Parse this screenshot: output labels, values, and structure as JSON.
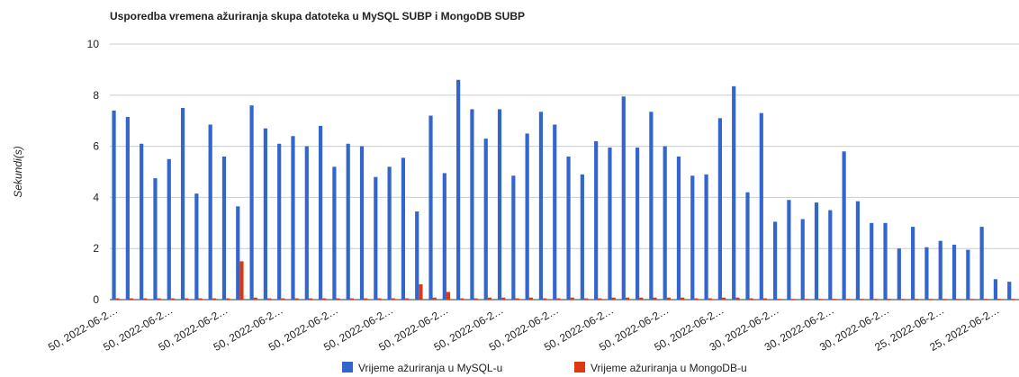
{
  "chart_data": {
    "type": "bar",
    "title": "Usporedba vremena ažuriranja skupa datoteka u MySQL SUBP i MongoDB SUBP",
    "y_label": "Sekundi(s)",
    "categories": [
      "50, 2022-06-2…",
      null,
      null,
      null,
      "50, 2022-06-2…",
      null,
      null,
      null,
      "50, 2022-06-2…",
      null,
      null,
      null,
      "50, 2022-06-2…",
      null,
      null,
      null,
      "50, 2022-06-2…",
      null,
      null,
      null,
      "50, 2022-06-2…",
      null,
      null,
      null,
      "50, 2022-06-2…",
      null,
      null,
      null,
      "50, 2022-06-2…",
      null,
      null,
      null,
      "50, 2022-06-2…",
      null,
      null,
      null,
      "50, 2022-06-2…",
      null,
      null,
      null,
      "50, 2022-06-2…",
      null,
      null,
      null,
      "50, 2022-06-2…",
      null,
      null,
      null,
      "30, 2022-06-2…",
      null,
      null,
      null,
      "30, 2022-06-2…",
      null,
      null,
      null,
      "30, 2022-06-2…",
      null,
      null,
      null,
      "25, 2022-06-2…",
      null,
      null,
      null,
      "25, 2022-06-2…",
      null
    ],
    "series": [
      {
        "name": "Vrijeme ažuriranja u MySQL-u",
        "color": "#3366cc",
        "values": [
          7.4,
          7.15,
          6.1,
          4.75,
          5.5,
          7.5,
          4.15,
          6.85,
          5.6,
          3.65,
          7.6,
          6.7,
          6.1,
          6.4,
          6.0,
          6.8,
          5.2,
          6.1,
          6.0,
          4.8,
          5.2,
          5.55,
          3.45,
          7.2,
          4.95,
          8.6,
          7.45,
          6.3,
          7.45,
          4.85,
          6.5,
          7.35,
          6.85,
          5.6,
          4.9,
          6.2,
          5.95,
          7.95,
          5.95,
          7.35,
          6.0,
          5.6,
          4.85,
          4.9,
          7.1,
          8.35,
          4.2,
          7.3,
          3.05,
          3.9,
          3.15,
          3.8,
          3.5,
          5.8,
          3.85,
          3.0,
          3.0,
          2.0,
          2.85,
          2.05,
          2.3,
          2.15,
          1.95,
          2.85,
          0.8,
          0.7
        ]
      },
      {
        "name": "Vrijeme ažuriranja u MongoDB-u",
        "color": "#dc3912",
        "values": [
          0.05,
          0.05,
          0.05,
          0.05,
          0.05,
          0.05,
          0.05,
          0.05,
          0.05,
          1.5,
          0.08,
          0.05,
          0.05,
          0.05,
          0.05,
          0.05,
          0.05,
          0.05,
          0.05,
          0.05,
          0.05,
          0.05,
          0.6,
          0.08,
          0.3,
          0.05,
          0.05,
          0.08,
          0.08,
          0.05,
          0.08,
          0.05,
          0.05,
          0.08,
          0.05,
          0.05,
          0.08,
          0.08,
          0.08,
          0.08,
          0.08,
          0.08,
          0.05,
          0.05,
          0.08,
          0.08,
          0.05,
          0.05,
          0.03,
          0.03,
          0.03,
          0.03,
          0.03,
          0.03,
          0.03,
          0.03,
          0.03,
          0.03,
          0.03,
          0.03,
          0.03,
          0.03,
          0.03,
          0.03,
          0.03,
          0.03
        ]
      }
    ],
    "ylim": [
      0,
      10
    ],
    "yticks": [
      0,
      2,
      4,
      6,
      8,
      10
    ],
    "grid": true,
    "legend": "bottom"
  }
}
